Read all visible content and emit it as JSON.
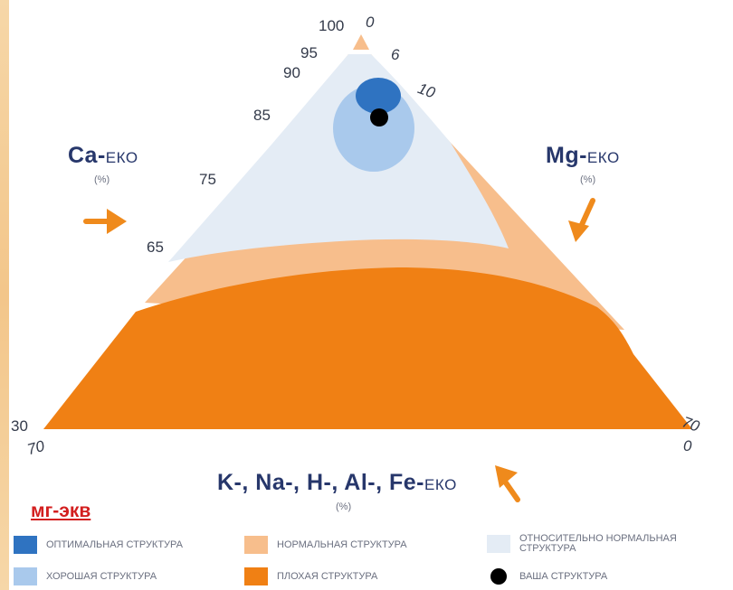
{
  "axes": {
    "ca": {
      "main": "Ca-",
      "suffix": "ЕКО",
      "unit": "(%)"
    },
    "mg": {
      "main": "Mg-",
      "suffix": "ЕКО",
      "unit": "(%)"
    },
    "other": {
      "main": "K-, Na-, H-, Al-, Fe-",
      "suffix": "ЕКО",
      "unit": "(%)"
    }
  },
  "ticks": {
    "left": [
      "100",
      "95",
      "90",
      "85",
      "75",
      "65",
      "30"
    ],
    "right": [
      "0",
      "6",
      "10",
      "70",
      "0"
    ],
    "bottom": [
      "70"
    ]
  },
  "units_label": "мг-экв",
  "legend": [
    {
      "label": "ОПТИМАЛЬНАЯ СТРУКТУРА",
      "color": "#2f73c1"
    },
    {
      "label": "НОРМАЛЬНАЯ СТРУКТУРА",
      "color": "#f7be8c"
    },
    {
      "label": "ОТНОСИТЕЛЬНО НОРМАЛЬНАЯ СТРУКТУРА",
      "color": "#e4ecf5"
    },
    {
      "label": "ХОРОШАЯ СТРУКТУРА",
      "color": "#a9c9ec"
    },
    {
      "label": "ПЛОХАЯ СТРУКТУРА",
      "color": "#f08014"
    },
    {
      "label": "ВАША СТРУКТУРА",
      "color": "#000000"
    }
  ],
  "colors": {
    "arrow": "#ef8a1c",
    "axis_text": "#27376b"
  }
}
